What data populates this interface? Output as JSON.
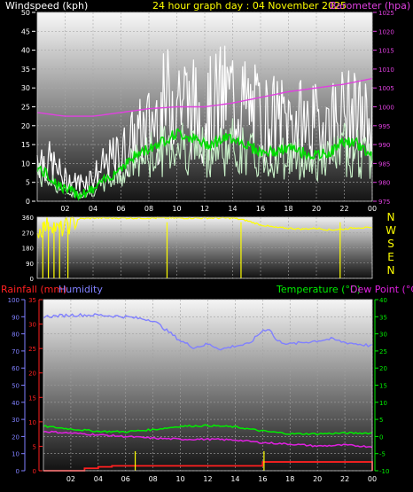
{
  "colors": {
    "background": "#000000",
    "windspeed": "#ffffff",
    "gust_fill": "#ffffff",
    "avg_wind": "#00dd00",
    "gust_light": "#c8f0c8",
    "barometer": "#e040e0",
    "direction": "#ffff00",
    "rainfall": "#ff2020",
    "humidity": "#8080ff",
    "temperature": "#00ee00",
    "dewpoint": "#e020e0",
    "header_title": "#ffff00",
    "compass_text": "#ffff00"
  },
  "header": {
    "windspeed_label": "Windspeed (kph)",
    "title": "24 hour graph day : 04 November 2025",
    "barometer_label": "Barometer (hpa)"
  },
  "compass": [
    "N",
    "W",
    "S",
    "E",
    "N"
  ],
  "bottom_header": {
    "rainfall_label": "Rainfall (mm)",
    "humidity_label": "Humidity",
    "temperature_label": "Temperature (°C)",
    "dewpoint_label": "Dew Point (°C)"
  },
  "x_ticks": [
    "02",
    "04",
    "06",
    "08",
    "10",
    "12",
    "14",
    "16",
    "18",
    "20",
    "22",
    "00"
  ],
  "chart_data": [
    {
      "type": "line",
      "title": "24 hour graph day : 04 November 2025",
      "ylabel": "Windspeed (kph)",
      "ylabel_right": "Barometer (hpa)",
      "ylim": [
        0,
        50
      ],
      "ylim_right": [
        975,
        1025
      ],
      "yticks": [
        "0",
        "5",
        "10",
        "15",
        "20",
        "25",
        "30",
        "35",
        "40",
        "45",
        "50"
      ],
      "yticks_right": [
        "975",
        "980",
        "985",
        "990",
        "995",
        "1000",
        "1005",
        "1010",
        "1015",
        "1020",
        "1025"
      ],
      "series": [
        {
          "name": "Windspeed (kph)",
          "x": [
            0,
            1,
            2,
            3,
            4,
            5,
            6,
            7,
            8,
            9,
            10,
            11,
            12,
            13,
            14,
            15,
            16,
            17,
            18,
            19,
            20,
            21,
            22,
            23,
            24
          ],
          "values": [
            15,
            12,
            7,
            6,
            8,
            12,
            15,
            20,
            24,
            30,
            36,
            30,
            28,
            32,
            34,
            30,
            27,
            26,
            26,
            25,
            24,
            26,
            28,
            26,
            25
          ]
        },
        {
          "name": "Barometer (hpa)",
          "x": [
            0,
            2,
            4,
            6,
            8,
            10,
            12,
            14,
            16,
            18,
            20,
            22,
            24
          ],
          "values": [
            998.5,
            997.5,
            997.5,
            998.5,
            999.5,
            1000,
            1000,
            1001,
            1002.5,
            1004,
            1005,
            1006,
            1007.5
          ]
        },
        {
          "x": [
            0,
            1,
            2,
            3,
            4,
            5,
            6,
            7,
            8,
            9,
            10,
            11,
            12,
            13,
            14,
            15,
            16,
            17,
            18,
            19,
            20,
            21,
            22,
            23,
            24
          ],
          "values": [
            9,
            6,
            3,
            2,
            3,
            6,
            9,
            12,
            14,
            16,
            18,
            17,
            15,
            16,
            17,
            15,
            13,
            13,
            14,
            13,
            12,
            13,
            16,
            15,
            12
          ]
        }
      ]
    },
    {
      "type": "line",
      "ylim": [
        0,
        360
      ],
      "yticks": [
        "0",
        "90",
        "180",
        "270",
        "360"
      ],
      "series": [
        {
          "x": [
            0,
            0.5,
            1,
            1.5,
            2,
            2.5,
            3,
            4,
            5,
            6,
            7,
            8,
            9,
            10,
            11,
            12,
            13,
            14,
            15,
            16,
            17,
            18,
            19,
            20,
            21,
            22,
            23,
            24
          ],
          "values": [
            270,
            300,
            330,
            280,
            300,
            320,
            350,
            355,
            355,
            355,
            355,
            355,
            355,
            355,
            355,
            355,
            355,
            355,
            340,
            315,
            300,
            295,
            290,
            295,
            285,
            290,
            300,
            295
          ]
        }
      ]
    },
    {
      "type": "line",
      "ylabel": "Rainfall (mm)",
      "ylim": [
        0,
        35
      ],
      "yticks": [
        "0",
        "5",
        "10",
        "15",
        "20",
        "25",
        "30",
        "35"
      ],
      "ylim_humidity": [
        0,
        100
      ],
      "yticks_humidity": [
        "0",
        "10",
        "20",
        "30",
        "40",
        "50",
        "60",
        "70",
        "80",
        "90",
        "100"
      ],
      "ylim_temp": [
        -10,
        40
      ],
      "yticks_temp": [
        "-10",
        "-5",
        "0",
        "5",
        "10",
        "15",
        "20",
        "25",
        "30",
        "35",
        "40"
      ],
      "series": [
        {
          "name": "Humidity",
          "x": [
            0,
            2,
            4,
            6,
            8,
            9,
            10,
            11,
            12,
            13,
            14,
            15,
            16,
            16.5,
            17,
            18,
            19,
            20,
            21,
            22,
            23,
            24
          ],
          "values": [
            90,
            91,
            91,
            90,
            88,
            82,
            76,
            72,
            74,
            71,
            73,
            74,
            82,
            83,
            76,
            74,
            75,
            76,
            77,
            75,
            74,
            73
          ]
        },
        {
          "name": "Temperature (°C)",
          "x": [
            0,
            2,
            4,
            6,
            8,
            10,
            12,
            14,
            16,
            18,
            20,
            22,
            24
          ],
          "values": [
            3,
            2.2,
            1.5,
            1.4,
            2,
            3,
            3.2,
            2.8,
            1.6,
            0.8,
            0.8,
            1,
            1
          ]
        },
        {
          "name": "Dew Point (°C)",
          "x": [
            0,
            2,
            4,
            6,
            8,
            10,
            12,
            14,
            16,
            18,
            20,
            22,
            24
          ],
          "values": [
            1.5,
            1,
            0.5,
            0,
            -0.5,
            -0.8,
            -0.8,
            -1,
            -1.8,
            -2.2,
            -2.8,
            -2.5,
            -3
          ]
        },
        {
          "name": "Rainfall (mm)",
          "x": [
            0,
            2,
            3,
            4,
            5,
            6,
            8,
            10,
            12,
            14,
            15.9,
            16.0,
            18,
            20,
            22,
            23.9,
            24
          ],
          "values": [
            0,
            0,
            0.5,
            0.8,
            1,
            1,
            1,
            1,
            1,
            1,
            1,
            1.8,
            1.8,
            1.8,
            1.8,
            1.8,
            0
          ]
        }
      ]
    }
  ]
}
